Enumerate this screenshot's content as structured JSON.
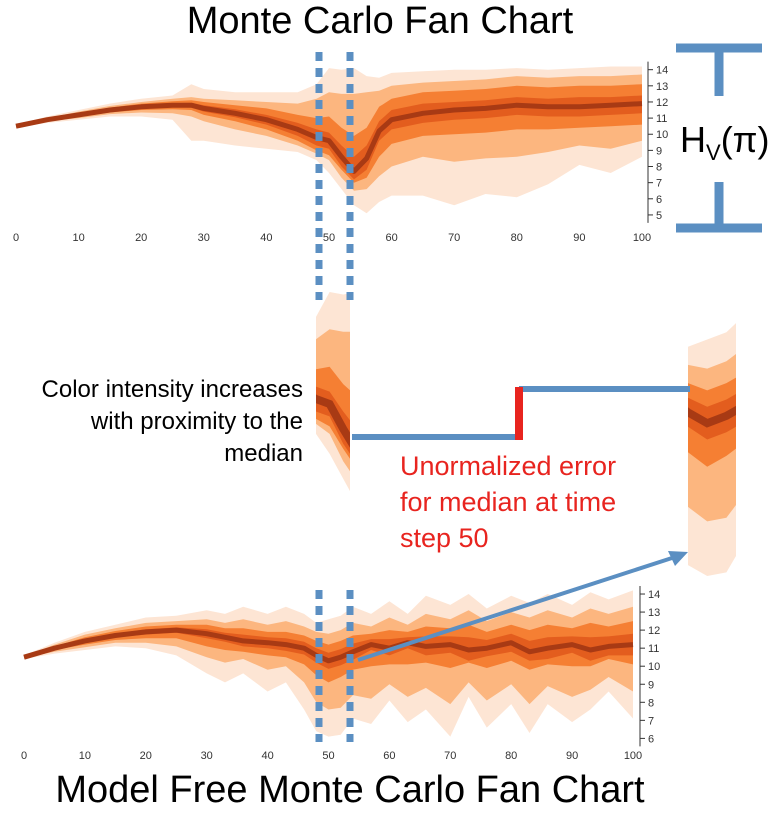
{
  "title_top": "Monte Carlo Fan Chart",
  "title_bottom": "Model Free Monte Carlo Fan Chart",
  "hv_label": {
    "main": "H",
    "sub": "V",
    "arg": "(π)"
  },
  "annotation_left": [
    "Color intensity increases",
    "with proximity to the",
    "median"
  ],
  "annotation_right": [
    "Unormalized error",
    "for median at time",
    "step 50"
  ],
  "colors": {
    "band_outer": "#fde5d4",
    "band_mid": "#fcb67f",
    "band_inner": "#f57f33",
    "band_core": "#e35d1e",
    "median": "#a83a14",
    "marker_blue": "#5b8fc2",
    "error_red": "#e8241f",
    "annotation_red": "#e8241f"
  },
  "chart_data": [
    {
      "type": "area",
      "title": "Monte Carlo Fan Chart",
      "x_ticks": [
        0,
        10,
        20,
        30,
        40,
        50,
        60,
        70,
        80,
        90,
        100
      ],
      "y_ticks": [
        5,
        6,
        7,
        8,
        9,
        10,
        11,
        12,
        13,
        14
      ],
      "xlim": [
        0,
        100
      ],
      "ylim": [
        4.5,
        14.6
      ],
      "x": [
        0,
        5,
        10,
        15,
        20,
        25,
        28,
        30,
        35,
        40,
        45,
        48,
        50,
        52,
        54,
        56,
        58,
        60,
        65,
        70,
        75,
        80,
        85,
        90,
        95,
        100
      ],
      "median": [
        10.5,
        10.9,
        11.2,
        11.5,
        11.7,
        11.8,
        11.8,
        11.6,
        11.3,
        10.9,
        10.3,
        9.8,
        9.6,
        8.6,
        7.7,
        8.5,
        10.2,
        10.9,
        11.3,
        11.5,
        11.6,
        11.8,
        11.7,
        11.7,
        11.8,
        11.9
      ],
      "bands": [
        {
          "level": "outer",
          "upper": [
            10.6,
            11.1,
            11.5,
            11.9,
            12.2,
            12.4,
            13.1,
            12.8,
            12.6,
            12.6,
            12.6,
            13.1,
            14.1,
            14.0,
            14.1,
            13.6,
            13.5,
            13.8,
            13.9,
            14.0,
            14.0,
            14.1,
            14.0,
            14.1,
            14.2,
            14.2
          ],
          "lower": [
            10.4,
            10.7,
            10.9,
            11.1,
            11.1,
            10.9,
            9.6,
            9.6,
            9.3,
            9.1,
            8.9,
            8.4,
            7.6,
            6.6,
            5.6,
            5.1,
            5.8,
            6.2,
            6.2,
            5.6,
            6.3,
            6.1,
            6.9,
            8.1,
            7.6,
            8.6
          ]
        },
        {
          "level": "mid",
          "upper": [
            10.55,
            11.0,
            11.4,
            11.75,
            12.0,
            12.2,
            12.3,
            12.2,
            12.1,
            12.0,
            11.9,
            12.2,
            12.6,
            12.5,
            12.5,
            12.6,
            12.7,
            13.0,
            13.2,
            13.3,
            13.4,
            13.6,
            13.5,
            13.6,
            13.6,
            13.7
          ],
          "lower": [
            10.45,
            10.8,
            11.0,
            11.25,
            11.35,
            11.3,
            11.1,
            10.8,
            10.3,
            9.9,
            9.3,
            8.8,
            8.4,
            7.3,
            6.5,
            6.6,
            7.4,
            8.0,
            8.6,
            8.3,
            8.5,
            8.6,
            8.9,
            9.3,
            9.1,
            9.6
          ]
        },
        {
          "level": "inner",
          "upper": [
            10.52,
            10.95,
            11.3,
            11.65,
            11.9,
            12.05,
            12.1,
            12.0,
            11.8,
            11.6,
            11.2,
            11.0,
            11.1,
            10.4,
            9.9,
            10.4,
            11.7,
            12.2,
            12.6,
            12.7,
            12.8,
            13.0,
            12.9,
            13.0,
            13.0,
            13.1
          ],
          "lower": [
            10.48,
            10.85,
            11.1,
            11.35,
            11.5,
            11.55,
            11.5,
            11.2,
            10.8,
            10.3,
            9.6,
            9.0,
            8.7,
            7.8,
            7.0,
            7.3,
            8.6,
            9.4,
            9.9,
            10.0,
            10.1,
            10.3,
            10.3,
            10.4,
            10.5,
            10.6
          ]
        },
        {
          "level": "core",
          "upper": [
            10.51,
            10.92,
            11.25,
            11.58,
            11.8,
            11.92,
            11.95,
            11.8,
            11.55,
            11.2,
            10.7,
            10.3,
            10.1,
            9.3,
            8.6,
            9.3,
            10.8,
            11.5,
            11.9,
            12.0,
            12.1,
            12.3,
            12.2,
            12.3,
            12.3,
            12.4
          ],
          "lower": [
            10.49,
            10.88,
            11.15,
            11.42,
            11.6,
            11.68,
            11.65,
            11.4,
            11.05,
            10.6,
            9.9,
            9.3,
            9.1,
            8.0,
            7.2,
            7.8,
            9.6,
            10.3,
            10.7,
            10.9,
            11.0,
            11.2,
            11.1,
            11.1,
            11.2,
            11.3
          ]
        }
      ]
    },
    {
      "type": "area",
      "title": "Model Free Monte Carlo Fan Chart",
      "x_ticks": [
        0,
        10,
        20,
        30,
        40,
        50,
        60,
        70,
        80,
        90,
        100
      ],
      "y_ticks": [
        6,
        7,
        8,
        9,
        10,
        11,
        12,
        13,
        14
      ],
      "xlim": [
        0,
        100
      ],
      "ylim": [
        5.8,
        14.5
      ],
      "x": [
        0,
        5,
        10,
        15,
        20,
        25,
        30,
        33,
        36,
        40,
        43,
        46,
        48,
        50,
        52,
        54,
        57,
        60,
        63,
        66,
        70,
        73,
        76,
        80,
        83,
        86,
        90,
        93,
        96,
        100
      ],
      "median": [
        10.5,
        11.0,
        11.4,
        11.7,
        11.9,
        12.0,
        11.8,
        11.6,
        11.4,
        11.3,
        11.2,
        11.0,
        10.6,
        10.3,
        10.5,
        10.8,
        11.2,
        11.0,
        11.3,
        11.1,
        11.2,
        10.9,
        11.0,
        11.3,
        10.8,
        11.0,
        11.2,
        10.9,
        11.1,
        11.2
      ],
      "bands": [
        {
          "level": "outer",
          "upper": [
            10.6,
            11.3,
            11.9,
            12.3,
            12.7,
            12.8,
            13.1,
            12.9,
            13.3,
            12.9,
            13.3,
            12.9,
            12.4,
            12.6,
            12.8,
            13.3,
            12.9,
            13.6,
            12.9,
            13.9,
            13.4,
            14.0,
            13.2,
            13.9,
            13.5,
            14.0,
            13.4,
            14.1,
            13.7,
            14.2
          ],
          "lower": [
            10.4,
            10.7,
            10.9,
            11.1,
            11.0,
            10.6,
            9.6,
            9.1,
            9.6,
            8.6,
            9.1,
            7.6,
            6.4,
            6.1,
            6.2,
            7.1,
            6.8,
            8.1,
            6.9,
            7.6,
            6.1,
            8.3,
            6.6,
            7.9,
            6.3,
            7.9,
            6.9,
            7.6,
            8.6,
            7.1
          ]
        },
        {
          "level": "mid",
          "upper": [
            10.55,
            11.2,
            11.75,
            12.1,
            12.4,
            12.5,
            12.6,
            12.4,
            12.6,
            12.3,
            12.5,
            12.2,
            11.9,
            11.8,
            12.0,
            12.4,
            12.2,
            12.7,
            12.3,
            12.9,
            12.6,
            13.1,
            12.5,
            13.0,
            12.7,
            13.1,
            12.7,
            13.2,
            12.9,
            13.3
          ],
          "lower": [
            10.45,
            10.8,
            11.05,
            11.3,
            11.3,
            11.1,
            10.5,
            10.2,
            10.4,
            9.8,
            10.0,
            9.1,
            8.0,
            7.6,
            7.7,
            8.4,
            8.2,
            9.0,
            8.3,
            8.8,
            7.9,
            9.1,
            8.1,
            9.0,
            7.9,
            8.9,
            8.3,
            8.7,
            9.4,
            8.6
          ]
        },
        {
          "level": "inner",
          "upper": [
            10.52,
            11.1,
            11.6,
            11.95,
            12.2,
            12.3,
            12.3,
            12.1,
            12.1,
            11.9,
            11.9,
            11.7,
            11.4,
            11.2,
            11.4,
            11.7,
            11.8,
            12.0,
            11.9,
            12.2,
            12.1,
            12.3,
            11.9,
            12.3,
            12.0,
            12.3,
            12.1,
            12.4,
            12.2,
            12.5
          ],
          "lower": [
            10.48,
            10.9,
            11.2,
            11.45,
            11.55,
            11.55,
            11.1,
            10.9,
            10.8,
            10.6,
            10.5,
            10.1,
            9.5,
            9.1,
            9.4,
            9.8,
            10.0,
            10.1,
            10.1,
            10.2,
            9.9,
            10.2,
            9.9,
            10.3,
            9.8,
            10.1,
            10.0,
            10.0,
            10.4,
            10.1
          ]
        },
        {
          "level": "core",
          "upper": [
            10.51,
            11.05,
            11.5,
            11.8,
            12.05,
            12.15,
            12.05,
            11.85,
            11.75,
            11.6,
            11.55,
            11.35,
            11.0,
            10.75,
            10.95,
            11.25,
            11.5,
            11.5,
            11.6,
            11.65,
            11.65,
            11.6,
            11.45,
            11.8,
            11.4,
            11.6,
            11.65,
            11.6,
            11.65,
            11.8
          ],
          "lower": [
            10.49,
            10.95,
            11.3,
            11.6,
            11.75,
            11.85,
            11.55,
            11.35,
            11.1,
            11.0,
            10.85,
            10.65,
            10.2,
            9.85,
            10.05,
            10.35,
            10.9,
            10.6,
            11.0,
            10.6,
            10.75,
            10.3,
            10.55,
            10.8,
            10.3,
            10.4,
            10.75,
            10.3,
            10.6,
            10.6
          ]
        }
      ]
    }
  ],
  "slice_left": {
    "chart": 0,
    "x_from": 48,
    "x_to": 53
  },
  "slice_right": {
    "chart": 1,
    "x_from": 48,
    "x_to": 53
  }
}
